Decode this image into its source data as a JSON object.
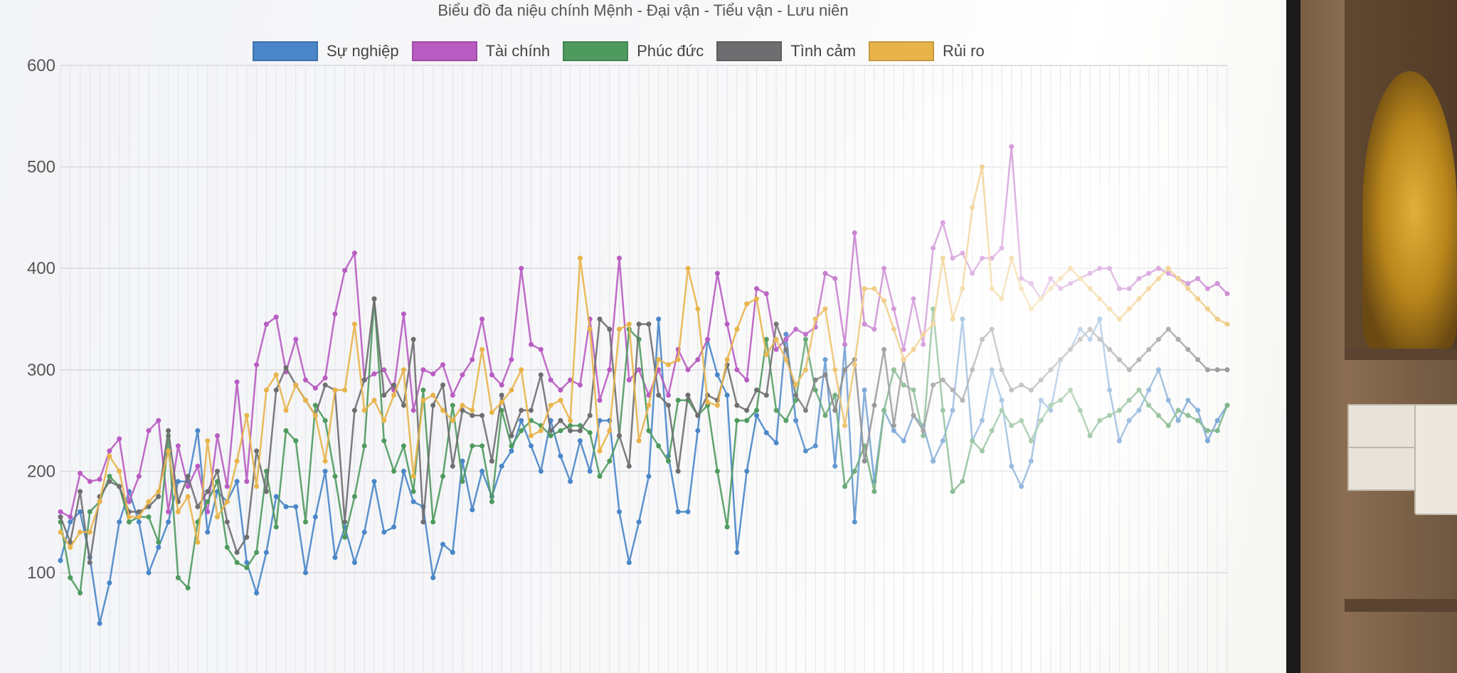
{
  "chart_data": {
    "type": "line",
    "title": "Biểu đồ đa niệu chính Mệnh - Đại vận - Tiểu vận - Lưu niên",
    "xlabel": "",
    "ylabel": "",
    "ylim": [
      40,
      640
    ],
    "yticks": [
      100,
      200,
      300,
      400,
      500,
      600
    ],
    "x_count": 120,
    "grid": true,
    "legend_position": "top",
    "series": [
      {
        "name": "Sự nghiệp",
        "color": "#4a86c8",
        "values": [
          112,
          150,
          160,
          115,
          50,
          90,
          150,
          180,
          150,
          100,
          125,
          150,
          190,
          190,
          240,
          140,
          180,
          170,
          190,
          110,
          80,
          120,
          175,
          165,
          165,
          100,
          155,
          200,
          115,
          145,
          110,
          140,
          190,
          140,
          145,
          200,
          170,
          165,
          95,
          128,
          120,
          210,
          162,
          200,
          175,
          205,
          220,
          250,
          225,
          200,
          250,
          215,
          190,
          230,
          200,
          250,
          250,
          160,
          110,
          150,
          195,
          350,
          215,
          160,
          160,
          240,
          330,
          295,
          275,
          120,
          200,
          255,
          238,
          228,
          335,
          250,
          220,
          225,
          310,
          205,
          325,
          150,
          280,
          190,
          260,
          240,
          230,
          255,
          245,
          210,
          230,
          260,
          350,
          230,
          250,
          300,
          270,
          205,
          185,
          210,
          270,
          260,
          310,
          320,
          340,
          330,
          350,
          280,
          230,
          250,
          260,
          280,
          300,
          270,
          250,
          270,
          260,
          230,
          250,
          265
        ]
      },
      {
        "name": "Tài chính",
        "color": "#b85cc2",
        "values": [
          160,
          155,
          198,
          190,
          192,
          220,
          232,
          170,
          195,
          240,
          250,
          160,
          225,
          185,
          205,
          160,
          235,
          185,
          288,
          190,
          305,
          345,
          352,
          298,
          330,
          290,
          282,
          292,
          355,
          398,
          415,
          290,
          296,
          300,
          280,
          355,
          260,
          300,
          296,
          305,
          275,
          295,
          310,
          350,
          295,
          285,
          310,
          400,
          325,
          320,
          290,
          280,
          290,
          285,
          350,
          270,
          300,
          410,
          290,
          300,
          275,
          300,
          275,
          320,
          300,
          310,
          330,
          395,
          345,
          300,
          290,
          380,
          375,
          320,
          330,
          340,
          335,
          342,
          395,
          390,
          325,
          435,
          345,
          340,
          400,
          360,
          320,
          370,
          325,
          420,
          445,
          410,
          415,
          395,
          410,
          410,
          420,
          520,
          390,
          385,
          370,
          390,
          380,
          385,
          390,
          395,
          400,
          400,
          380,
          380,
          390,
          395,
          400,
          395,
          390,
          385,
          390,
          380,
          385,
          375
        ]
      },
      {
        "name": "Phúc đức",
        "color": "#4f9a5e",
        "values": [
          150,
          95,
          80,
          160,
          170,
          195,
          185,
          150,
          155,
          155,
          130,
          235,
          95,
          85,
          150,
          170,
          190,
          125,
          110,
          105,
          120,
          200,
          145,
          240,
          230,
          150,
          265,
          250,
          195,
          135,
          175,
          225,
          370,
          230,
          200,
          225,
          180,
          280,
          150,
          195,
          265,
          190,
          225,
          225,
          170,
          260,
          225,
          240,
          250,
          245,
          235,
          240,
          245,
          245,
          238,
          195,
          210,
          235,
          340,
          330,
          240,
          225,
          210,
          270,
          270,
          255,
          265,
          200,
          145,
          250,
          250,
          260,
          330,
          260,
          250,
          270,
          330,
          280,
          255,
          275,
          185,
          200,
          225,
          180,
          260,
          300,
          285,
          280,
          235,
          360,
          260,
          180,
          190,
          230,
          220,
          240,
          260,
          245,
          250,
          230,
          250,
          265,
          270,
          280,
          260,
          235,
          250,
          255,
          260,
          270,
          280,
          265,
          255,
          245,
          260,
          255,
          250,
          240,
          240,
          265
        ]
      },
      {
        "name": "Tình cảm",
        "color": "#6e6e70",
        "values": [
          155,
          130,
          180,
          110,
          175,
          190,
          185,
          160,
          160,
          165,
          175,
          240,
          170,
          195,
          165,
          180,
          200,
          150,
          120,
          135,
          220,
          180,
          280,
          302,
          285,
          270,
          255,
          285,
          280,
          150,
          260,
          290,
          370,
          275,
          285,
          265,
          330,
          150,
          265,
          285,
          205,
          260,
          255,
          255,
          210,
          275,
          235,
          260,
          260,
          295,
          240,
          250,
          240,
          240,
          255,
          350,
          340,
          235,
          205,
          345,
          345,
          275,
          265,
          200,
          275,
          255,
          275,
          270,
          305,
          265,
          260,
          280,
          275,
          345,
          320,
          275,
          260,
          290,
          295,
          260,
          300,
          310,
          210,
          265,
          320,
          245,
          310,
          255,
          240,
          285,
          290,
          280,
          270,
          300,
          330,
          340,
          300,
          280,
          285,
          280,
          290,
          300,
          310,
          320,
          330,
          340,
          330,
          320,
          310,
          300,
          310,
          320,
          330,
          340,
          330,
          320,
          310,
          300,
          300,
          300
        ]
      },
      {
        "name": "Rủi ro",
        "color": "#e8b44a",
        "values": [
          140,
          125,
          140,
          140,
          170,
          215,
          200,
          155,
          155,
          170,
          180,
          220,
          160,
          175,
          130,
          230,
          155,
          170,
          210,
          255,
          185,
          280,
          295,
          260,
          285,
          270,
          255,
          210,
          280,
          280,
          345,
          260,
          270,
          250,
          275,
          300,
          195,
          270,
          275,
          260,
          250,
          265,
          260,
          320,
          258,
          268,
          280,
          300,
          235,
          240,
          265,
          270,
          250,
          410,
          340,
          220,
          240,
          340,
          345,
          230,
          265,
          310,
          305,
          310,
          400,
          360,
          268,
          265,
          310,
          340,
          365,
          370,
          315,
          330,
          310,
          285,
          300,
          350,
          360,
          300,
          245,
          305,
          380,
          380,
          368,
          340,
          310,
          320,
          335,
          345,
          410,
          350,
          380,
          460,
          500,
          380,
          370,
          410,
          380,
          360,
          370,
          380,
          390,
          400,
          390,
          380,
          370,
          360,
          350,
          360,
          370,
          380,
          390,
          400,
          390,
          380,
          370,
          360,
          350,
          345
        ]
      }
    ]
  }
}
